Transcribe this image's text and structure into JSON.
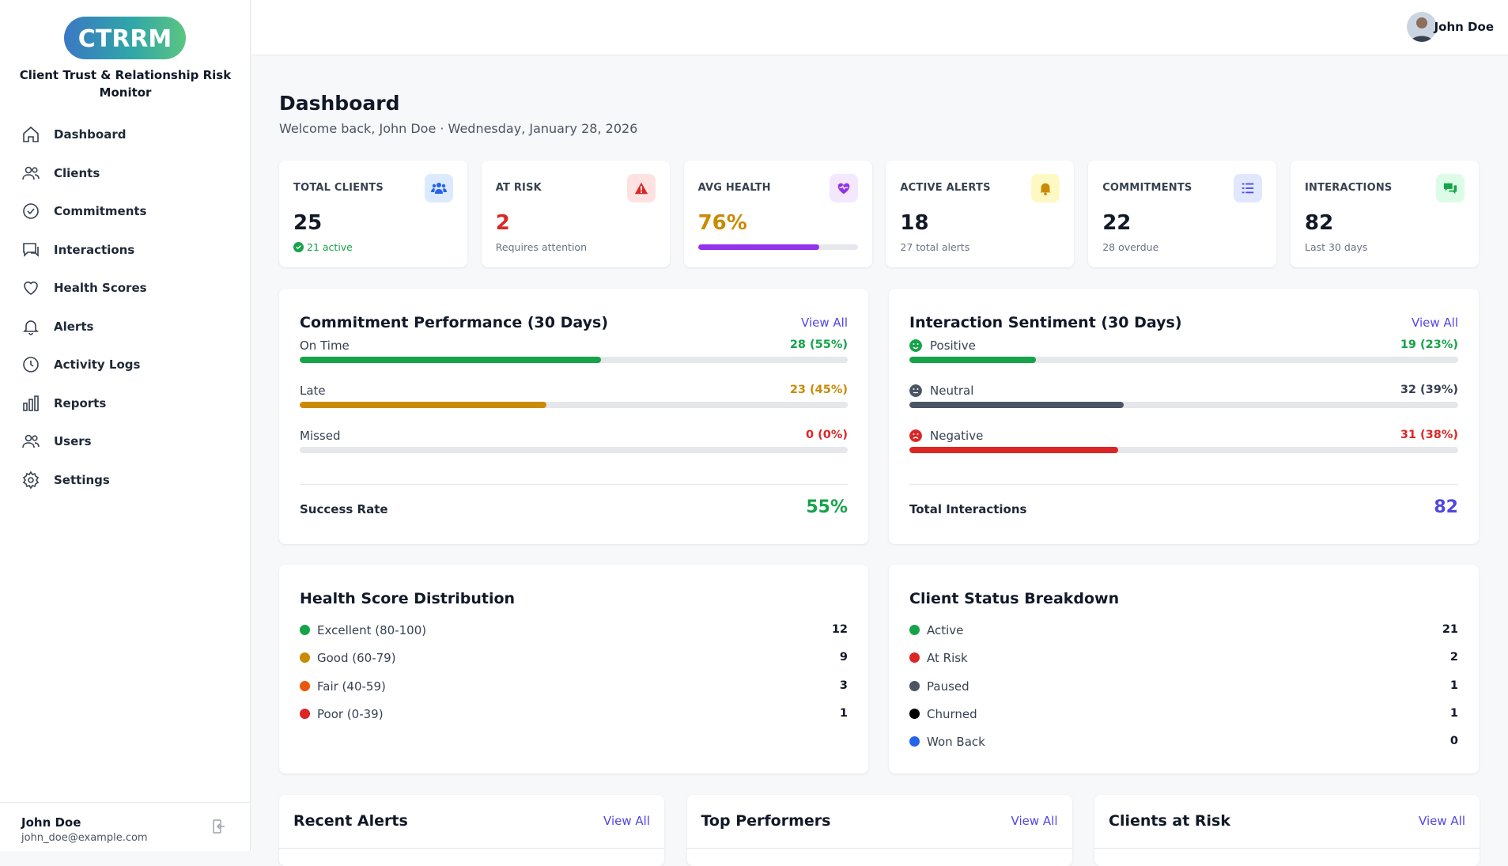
{
  "app": {
    "logo_text": "CTRRM",
    "name": "Client Trust & Relationship Risk Monitor"
  },
  "sidebar": {
    "items": [
      {
        "label": "Dashboard",
        "icon": "home-icon"
      },
      {
        "label": "Clients",
        "icon": "users-icon"
      },
      {
        "label": "Commitments",
        "icon": "check-circle-icon"
      },
      {
        "label": "Interactions",
        "icon": "chat-icon"
      },
      {
        "label": "Health Scores",
        "icon": "heart-icon"
      },
      {
        "label": "Alerts",
        "icon": "bell-icon"
      },
      {
        "label": "Activity Logs",
        "icon": "clock-icon"
      },
      {
        "label": "Reports",
        "icon": "bar-chart-icon"
      },
      {
        "label": "Users",
        "icon": "users-icon"
      },
      {
        "label": "Settings",
        "icon": "gear-icon"
      }
    ],
    "user": {
      "name": "John Doe",
      "email": "john_doe@example.com"
    }
  },
  "header": {
    "user_name": "John Doe"
  },
  "page": {
    "title": "Dashboard",
    "subtitle": "Welcome back, John Doe · Wednesday, January 28, 2026"
  },
  "stats": [
    {
      "label": "TOTAL CLIENTS",
      "value": "25",
      "sub": "21 active",
      "color": "#111827",
      "icon_bg": "#dbeafe",
      "icon_color": "#2563eb"
    },
    {
      "label": "AT RISK",
      "value": "2",
      "sub": "Requires attention",
      "color": "#dc2626",
      "icon_bg": "#fee2e2",
      "icon_color": "#dc2626"
    },
    {
      "label": "AVG HEALTH",
      "value": "76%",
      "progress": 76,
      "color": "#ca8a04",
      "icon_bg": "#f3e8ff",
      "icon_color": "#9333ea"
    },
    {
      "label": "ACTIVE ALERTS",
      "value": "18",
      "sub": "27 total alerts",
      "color": "#111827",
      "icon_bg": "#fef9c3",
      "icon_color": "#ca8a04"
    },
    {
      "label": "COMMITMENTS",
      "value": "22",
      "sub": "28 overdue",
      "color": "#111827",
      "icon_bg": "#e0e7ff",
      "icon_color": "#4f46e5"
    },
    {
      "label": "INTERACTIONS",
      "value": "82",
      "sub": "Last 30 days",
      "color": "#111827",
      "icon_bg": "#dcfce7",
      "icon_color": "#16a34a"
    }
  ],
  "commitments": {
    "title": "Commitment Performance (30 Days)",
    "view_all": "View All",
    "rows": [
      {
        "label": "On Time",
        "value": "28 (55%)",
        "pct": 55,
        "color": "#16a34a"
      },
      {
        "label": "Late",
        "value": "23 (45%)",
        "pct": 45,
        "color": "#ca8a04"
      },
      {
        "label": "Missed",
        "value": "0 (0%)",
        "pct": 0,
        "color": "#dc2626"
      }
    ],
    "total_label": "Success Rate",
    "total_value": "55%"
  },
  "sentiment": {
    "title": "Interaction Sentiment (30 Days)",
    "view_all": "View All",
    "rows": [
      {
        "label": "Positive",
        "value": "19 (23%)",
        "pct": 23,
        "color": "#16a34a"
      },
      {
        "label": "Neutral",
        "value": "32 (39%)",
        "pct": 39,
        "color": "#4b5563"
      },
      {
        "label": "Negative",
        "value": "31 (38%)",
        "pct": 38,
        "color": "#dc2626"
      }
    ],
    "total_label": "Total Interactions",
    "total_value": "82"
  },
  "health": {
    "title": "Health Score Distribution",
    "items": [
      {
        "label": "Excellent (80-100)",
        "count": "12",
        "color": "#16a34a"
      },
      {
        "label": "Good (60-79)",
        "count": "9",
        "color": "#ca8a04"
      },
      {
        "label": "Fair (40-59)",
        "count": "3",
        "color": "#ea580c"
      },
      {
        "label": "Poor (0-39)",
        "count": "1",
        "color": "#dc2626"
      }
    ]
  },
  "status": {
    "title": "Client Status Breakdown",
    "items": [
      {
        "label": "Active",
        "count": "21",
        "color": "#16a34a"
      },
      {
        "label": "At Risk",
        "count": "2",
        "color": "#dc2626"
      },
      {
        "label": "Paused",
        "count": "1",
        "color": "#4b5563"
      },
      {
        "label": "Churned",
        "count": "1",
        "color": "#000000"
      },
      {
        "label": "Won Back",
        "count": "0",
        "color": "#2563eb"
      }
    ]
  },
  "bottom": [
    {
      "title": "Recent Alerts",
      "view_all": "View All"
    },
    {
      "title": "Top Performers",
      "view_all": "View All"
    },
    {
      "title": "Clients at Risk",
      "view_all": "View All"
    }
  ]
}
